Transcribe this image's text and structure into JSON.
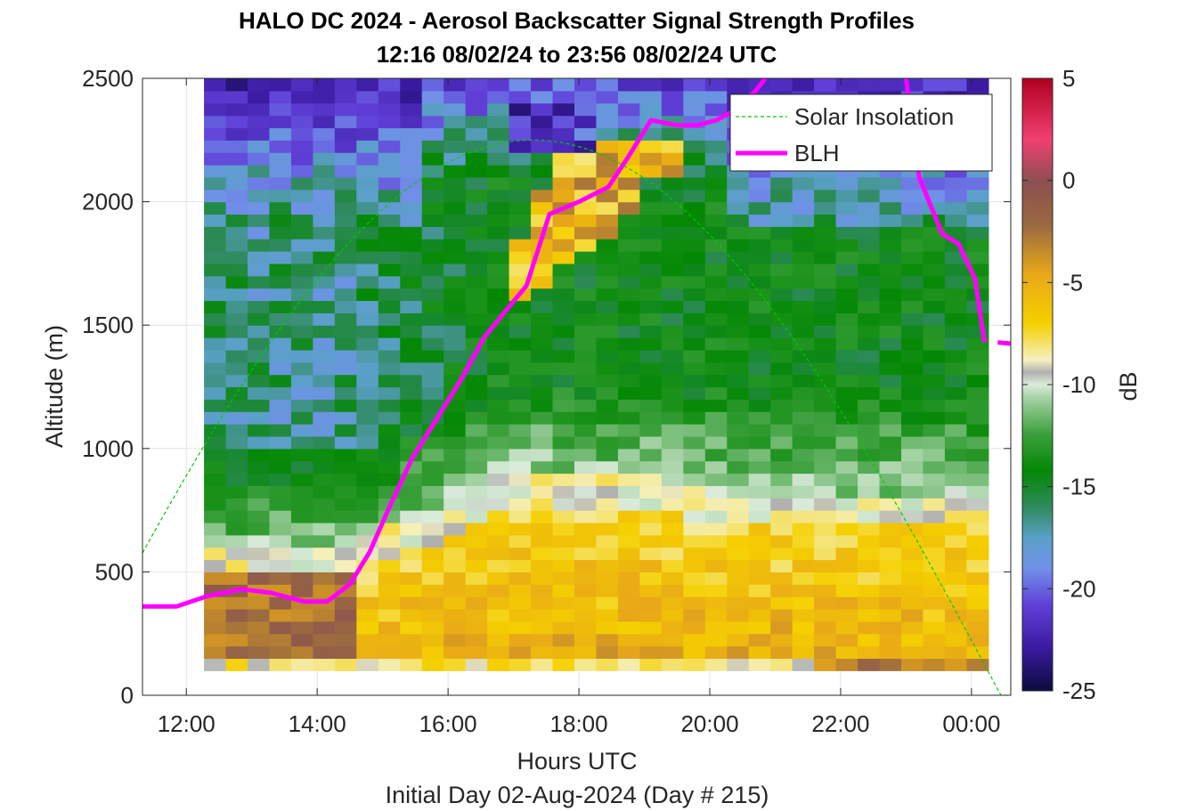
{
  "chart_data": {
    "type": "heatmap",
    "title": "HALO DC 2024 - Aerosol Backscatter Signal Strength Profiles",
    "subtitle": "12:16 08/02/24 to 23:56 08/02/24  UTC",
    "xlabel": "Hours UTC",
    "xlabel2": "Initial Day 02-Aug-2024 (Day # 215)",
    "ylabel": "Altitude (m)",
    "colorbar_label": "dB",
    "x_tick_labels": [
      "12:00",
      "14:00",
      "16:00",
      "18:00",
      "20:00",
      "22:00",
      "00:00"
    ],
    "x_tick_hours": [
      12,
      14,
      16,
      18,
      20,
      22,
      24
    ],
    "xlim_hours": [
      11.33,
      24.6
    ],
    "y_ticks": [
      0,
      500,
      1000,
      1500,
      2000,
      2500
    ],
    "ylim": [
      0,
      2500
    ],
    "clim": [
      -25,
      5
    ],
    "c_ticks": [
      5,
      0,
      -5,
      -10,
      -15,
      -20,
      -25
    ],
    "grid": true,
    "legend": {
      "placement": "top-right",
      "entries": [
        "Solar Insolation",
        "BLH"
      ],
      "colors": [
        "#00cc00",
        "#ff00ff"
      ]
    },
    "heatmap": {
      "x_start_hour": 12.27,
      "x_step_hour": 0.333,
      "y_bottom_m": 100,
      "y_step_m": 50,
      "description_rows_bottom_to_top": "values in dB",
      "columns": 36
    },
    "series": [
      {
        "name": "BLH",
        "color": "#ff00ff",
        "x_hours": [
          11.33,
          11.85,
          12.3,
          12.85,
          13.3,
          13.8,
          14.15,
          14.5,
          14.8,
          15.1,
          15.45,
          15.85,
          16.2,
          16.55,
          16.95,
          17.2,
          17.55,
          18.0,
          18.45,
          18.75,
          19.1,
          19.5,
          19.8,
          20.1,
          20.45,
          20.7,
          20.85
        ],
        "y_m": [
          360,
          360,
          400,
          430,
          415,
          380,
          380,
          450,
          580,
          760,
          960,
          1130,
          1280,
          1450,
          1580,
          1660,
          1950,
          2000,
          2060,
          2180,
          2330,
          2310,
          2310,
          2330,
          2380,
          2450,
          2500
        ]
      },
      {
        "name": "BLH",
        "color": "#ff00ff",
        "x_hours": [
          23.0,
          23.2,
          23.55,
          23.8,
          24.05,
          24.2
        ],
        "y_m": [
          2500,
          2100,
          1870,
          1830,
          1690,
          1430
        ]
      },
      {
        "name": "Solar Insolation",
        "color": "#00cc00",
        "sunrise_hour": 10.15,
        "sunset_hour": 24.45,
        "peak_hour": 17.25,
        "peak_m": 2250
      }
    ]
  }
}
